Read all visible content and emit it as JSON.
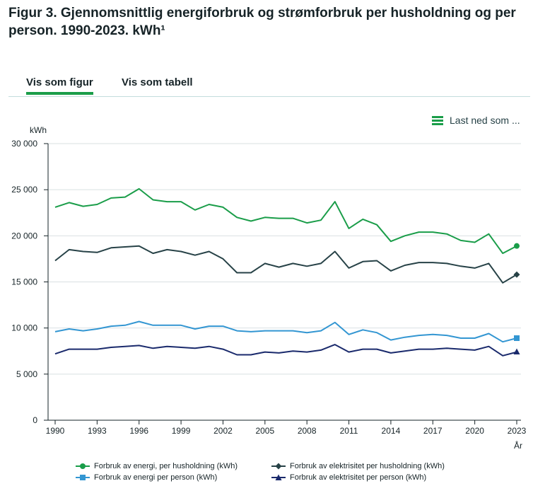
{
  "figure_title": "Figur 3. Gjennomsnittlig energiforbruk og strømforbruk per husholdning og per person. 1990-2023. kWh¹",
  "tabs": {
    "figure_label": "Vis som figur",
    "table_label": "Vis som tabell"
  },
  "download_label": "Last ned som ...",
  "icons": {
    "download": "menu-icon"
  },
  "colors": {
    "accent": "#1a9d49"
  },
  "chart_data": {
    "type": "line",
    "ylabel": "kWh",
    "xlabel": "År",
    "ylim": [
      0,
      30000
    ],
    "yticks": [
      0,
      5000,
      10000,
      15000,
      20000,
      25000,
      30000
    ],
    "yticklabels": [
      "0",
      "5 000",
      "10 000",
      "15 000",
      "20 000",
      "25 000",
      "30 000"
    ],
    "xticks": [
      "1990",
      "1993",
      "1996",
      "1999",
      "2002",
      "2005",
      "2008",
      "2011",
      "2014",
      "2017",
      "2020",
      "2023"
    ],
    "grid": "horizontal",
    "legend_position": "bottom",
    "x": [
      1990,
      1991,
      1992,
      1993,
      1994,
      1995,
      1996,
      1997,
      1998,
      1999,
      2000,
      2001,
      2002,
      2003,
      2004,
      2005,
      2006,
      2007,
      2008,
      2009,
      2010,
      2011,
      2012,
      2013,
      2014,
      2015,
      2016,
      2017,
      2018,
      2019,
      2020,
      2021,
      2022,
      2023
    ],
    "series": [
      {
        "name": "Forbruk av energi, per husholdning (kWh)",
        "color": "#1a9d49",
        "marker": "circle",
        "values": [
          23100,
          23600,
          23200,
          23400,
          24100,
          24200,
          25100,
          23900,
          23700,
          23700,
          22800,
          23400,
          23100,
          22000,
          21600,
          22000,
          21900,
          21900,
          21400,
          21700,
          23700,
          20800,
          21800,
          21200,
          19400,
          20000,
          20400,
          20400,
          20200,
          19500,
          19300,
          20200,
          18100,
          18900
        ]
      },
      {
        "name": "Forbruk av elektrisitet per husholdning (kWh)",
        "color": "#274247",
        "marker": "diamond",
        "values": [
          17300,
          18500,
          18300,
          18200,
          18700,
          18800,
          18900,
          18100,
          18500,
          18300,
          17900,
          18300,
          17500,
          16000,
          16000,
          17000,
          16600,
          17000,
          16700,
          17000,
          18300,
          16500,
          17200,
          17300,
          16200,
          16800,
          17100,
          17100,
          17000,
          16700,
          16500,
          17000,
          14900,
          15800
        ]
      },
      {
        "name": "Forbruk av energi per person (kWh)",
        "color": "#3396d2",
        "marker": "square",
        "values": [
          9600,
          9900,
          9700,
          9900,
          10200,
          10300,
          10700,
          10300,
          10300,
          10300,
          9900,
          10200,
          10200,
          9700,
          9600,
          9700,
          9700,
          9700,
          9500,
          9700,
          10600,
          9300,
          9800,
          9500,
          8700,
          9000,
          9200,
          9300,
          9200,
          8900,
          8900,
          9400,
          8500,
          8900
        ]
      },
      {
        "name": "Forbruk av elektrisitet per person (kWh)",
        "color": "#1a2a6c",
        "marker": "triangle",
        "values": [
          7200,
          7700,
          7700,
          7700,
          7900,
          8000,
          8100,
          7800,
          8000,
          7900,
          7800,
          8000,
          7700,
          7100,
          7100,
          7400,
          7300,
          7500,
          7400,
          7600,
          8200,
          7400,
          7700,
          7700,
          7300,
          7500,
          7700,
          7700,
          7800,
          7700,
          7600,
          8000,
          7000,
          7400
        ]
      }
    ]
  }
}
